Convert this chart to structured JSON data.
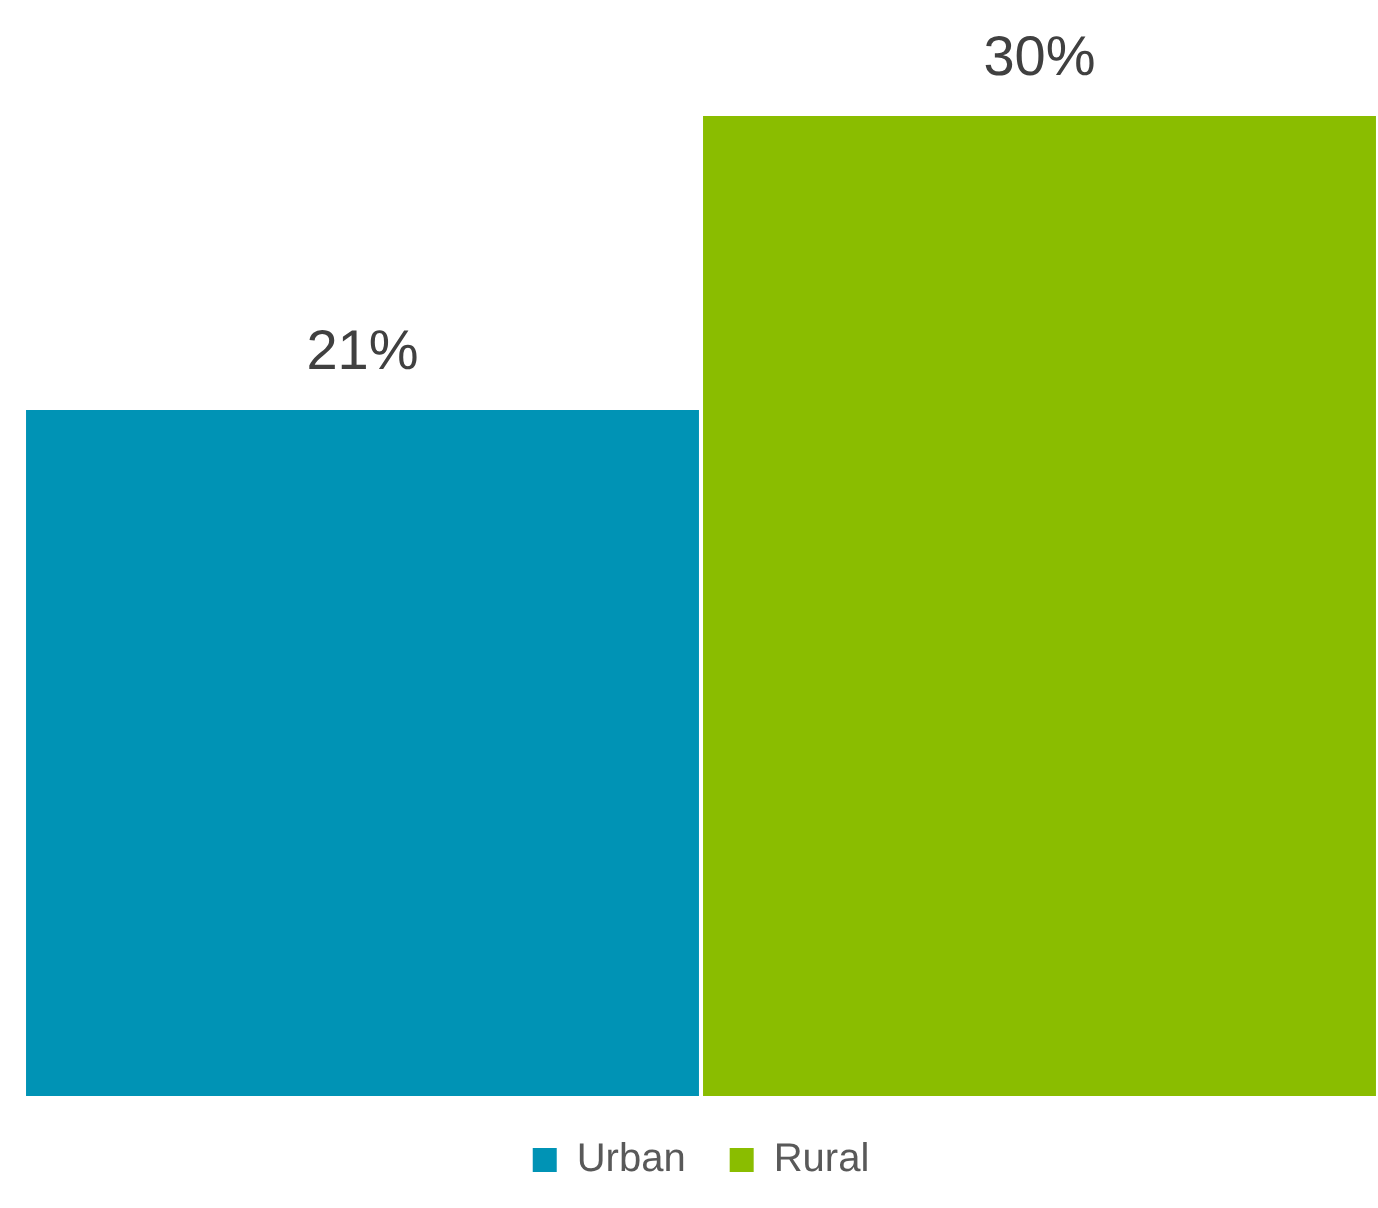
{
  "chart_data": {
    "type": "bar",
    "categories": [
      null
    ],
    "series": [
      {
        "name": "Urban",
        "color": "#0093b5",
        "values": [
          21
        ],
        "value_labels": [
          "21%"
        ]
      },
      {
        "name": "Rural",
        "color": "#8abd00",
        "values": [
          30
        ],
        "value_labels": [
          "30%"
        ]
      }
    ],
    "legend": "bottom"
  }
}
